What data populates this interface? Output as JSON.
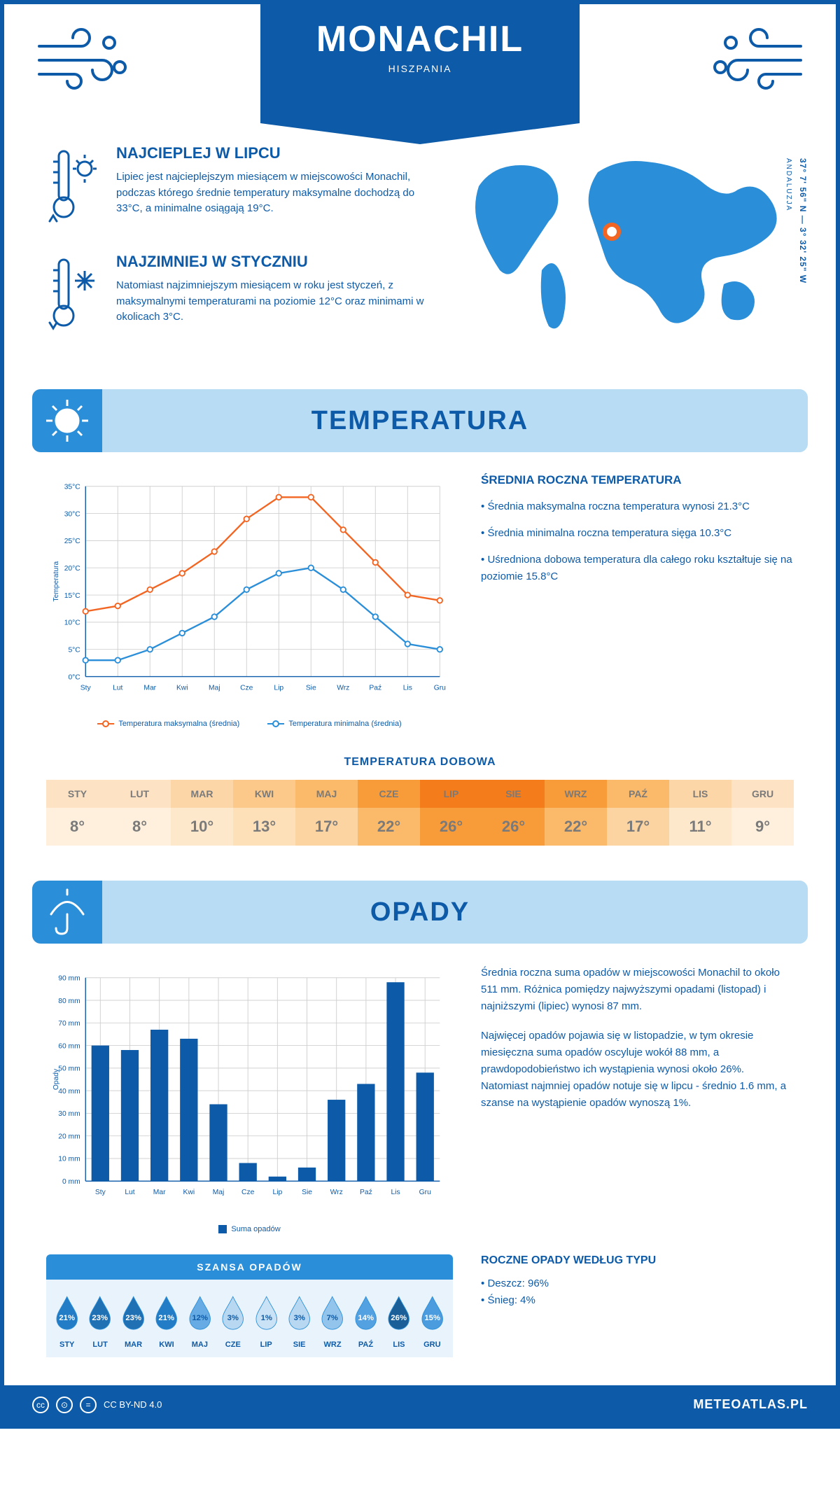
{
  "header": {
    "city": "MONACHIL",
    "country": "HISZPANIA"
  },
  "coords": "37° 7' 56\" N — 3° 32' 25\" W",
  "region": "ANDALUZJA",
  "hottest": {
    "title": "NAJCIEPLEJ W LIPCU",
    "text": "Lipiec jest najcieplejszym miesiącem w miejscowości Monachil, podczas którego średnie temperatury maksymalne dochodzą do 33°C, a minimalne osiągają 19°C."
  },
  "coldest": {
    "title": "NAJZIMNIEJ W STYCZNIU",
    "text": "Natomiast najzimniejszym miesiącem w roku jest styczeń, z maksymalnymi temperaturami na poziomie 12°C oraz minimami w okolicach 3°C."
  },
  "sections": {
    "temperature": "TEMPERATURA",
    "precipitation": "OPADY"
  },
  "months": [
    "Sty",
    "Lut",
    "Mar",
    "Kwi",
    "Maj",
    "Cze",
    "Lip",
    "Sie",
    "Wrz",
    "Paź",
    "Lis",
    "Gru"
  ],
  "months_upper": [
    "STY",
    "LUT",
    "MAR",
    "KWI",
    "MAJ",
    "CZE",
    "LIP",
    "SIE",
    "WRZ",
    "PAŹ",
    "LIS",
    "GRU"
  ],
  "temp_chart": {
    "type": "line",
    "ylabel": "Temperatura",
    "ylim": [
      0,
      35
    ],
    "ytick_step": 5,
    "max_series": {
      "label": "Temperatura maksymalna (średnia)",
      "color": "#f26522",
      "values": [
        12,
        13,
        16,
        19,
        23,
        29,
        33,
        33,
        27,
        21,
        15,
        14
      ]
    },
    "min_series": {
      "label": "Temperatura minimalna (średnia)",
      "color": "#2a8ed8",
      "values": [
        3,
        3,
        5,
        8,
        11,
        16,
        19,
        20,
        16,
        11,
        6,
        5
      ]
    },
    "grid_color": "#d8d8d8",
    "background": "#ffffff"
  },
  "annual_temp": {
    "title": "ŚREDNIA ROCZNA TEMPERATURA",
    "bullets": [
      "• Średnia maksymalna roczna temperatura wynosi 21.3°C",
      "• Średnia minimalna roczna temperatura sięga 10.3°C",
      "• Uśredniona dobowa temperatura dla całego roku kształtuje się na poziomie 15.8°C"
    ]
  },
  "daily_temp": {
    "title": "TEMPERATURA DOBOWA",
    "values": [
      "8°",
      "8°",
      "10°",
      "13°",
      "17°",
      "22°",
      "26°",
      "26°",
      "22°",
      "17°",
      "11°",
      "9°"
    ],
    "header_colors": [
      "#fde2c4",
      "#fde2c4",
      "#fdd6a8",
      "#fcc98a",
      "#fbba6a",
      "#f89c3a",
      "#f57c1a",
      "#f57c1a",
      "#f89c3a",
      "#fbba6a",
      "#fdd6a8",
      "#fde2c4"
    ],
    "value_colors": [
      "#fef0dd",
      "#fef0dd",
      "#fee8cc",
      "#fddfb8",
      "#fcd4a1",
      "#fbba6a",
      "#f89c3a",
      "#f89c3a",
      "#fbba6a",
      "#fcd4a1",
      "#fee8cc",
      "#fef0dd"
    ]
  },
  "precip_chart": {
    "type": "bar",
    "ylabel": "Opady",
    "ylim": [
      0,
      90
    ],
    "ytick_step": 10,
    "values": [
      60,
      58,
      67,
      63,
      34,
      8,
      2,
      6,
      36,
      43,
      88,
      48
    ],
    "bar_color": "#0d5ba8",
    "legend": "Suma opadów",
    "grid_color": "#d8d8d8"
  },
  "precip_text": {
    "p1": "Średnia roczna suma opadów w miejscowości Monachil to około 511 mm. Różnica pomiędzy najwyższymi opadami (listopad) i najniższymi (lipiec) wynosi 87 mm.",
    "p2": "Najwięcej opadów pojawia się w listopadzie, w tym okresie miesięczna suma opadów oscyluje wokół 88 mm, a prawdopodobieństwo ich wystąpienia wynosi około 26%. Natomiast najmniej opadów notuje się w lipcu - średnio 1.6 mm, a szanse na wystąpienie opadów wynoszą 1%."
  },
  "chance": {
    "title": "SZANSA OPADÓW",
    "values": [
      21,
      23,
      23,
      21,
      12,
      3,
      1,
      3,
      7,
      14,
      26,
      15
    ],
    "fill_base": "#2a8ed8",
    "empty": "#ffffff",
    "outline": "#2a8ed8"
  },
  "precip_type": {
    "title": "ROCZNE OPADY WEDŁUG TYPU",
    "lines": [
      "• Deszcz: 96%",
      "• Śnieg: 4%"
    ]
  },
  "footer": {
    "license": "CC BY-ND 4.0",
    "site": "METEOATLAS.PL"
  }
}
